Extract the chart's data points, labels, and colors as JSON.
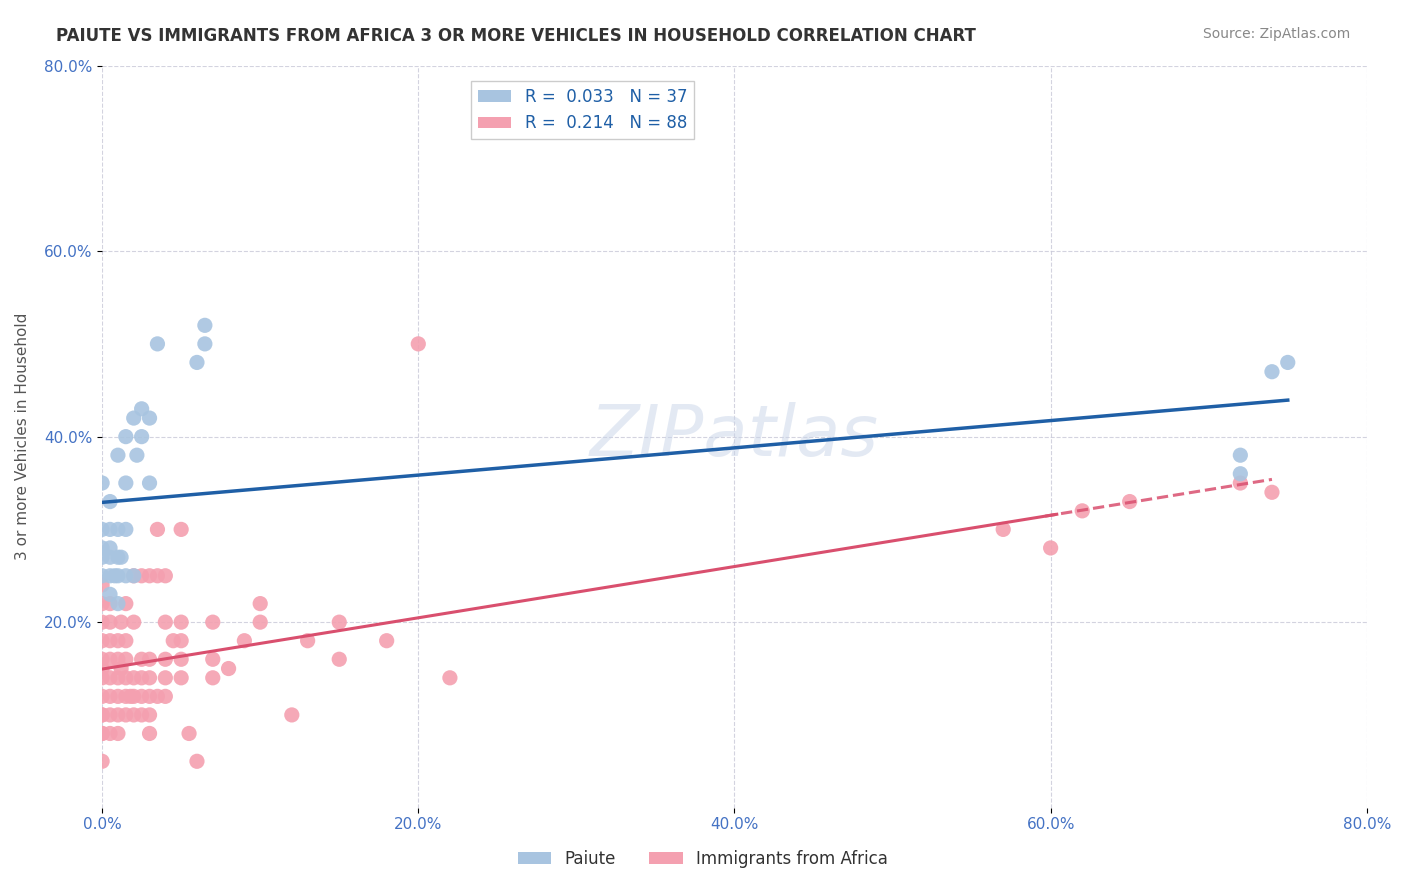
{
  "title": "PAIUTE VS IMMIGRANTS FROM AFRICA 3 OR MORE VEHICLES IN HOUSEHOLD CORRELATION CHART",
  "source": "Source: ZipAtlas.com",
  "xlabel": "",
  "ylabel": "3 or more Vehicles in Household",
  "xlim": [
    0.0,
    0.8
  ],
  "ylim": [
    0.0,
    0.8
  ],
  "xticks": [
    0.0,
    0.2,
    0.4,
    0.6,
    0.8
  ],
  "yticks": [
    0.2,
    0.4,
    0.6,
    0.8
  ],
  "xtick_labels": [
    "0.0%",
    "20.0%",
    "40.0%",
    "60.0%",
    "80.0%"
  ],
  "ytick_labels": [
    "20.0%",
    "40.0%",
    "60.0%",
    "80.0%"
  ],
  "paiute_R": 0.033,
  "paiute_N": 37,
  "africa_R": 0.214,
  "africa_N": 88,
  "paiute_color": "#a8c4e0",
  "africa_color": "#f4a0b0",
  "paiute_line_color": "#1f5fa6",
  "africa_line_color": "#d94f6e",
  "background_color": "#ffffff",
  "grid_color": "#c8c8d8",
  "watermark": "ZIPatlas",
  "legend_label_1": "Paiute",
  "legend_label_2": "Immigrants from Africa",
  "paiute_x": [
    0.0,
    0.0,
    0.0,
    0.0,
    0.0,
    0.005,
    0.005,
    0.005,
    0.005,
    0.005,
    0.005,
    0.008,
    0.01,
    0.01,
    0.01,
    0.01,
    0.01,
    0.012,
    0.015,
    0.015,
    0.015,
    0.015,
    0.02,
    0.02,
    0.022,
    0.025,
    0.025,
    0.03,
    0.03,
    0.035,
    0.06,
    0.065,
    0.065,
    0.72,
    0.72,
    0.74,
    0.75
  ],
  "paiute_y": [
    0.25,
    0.27,
    0.28,
    0.3,
    0.35,
    0.23,
    0.25,
    0.27,
    0.28,
    0.3,
    0.33,
    0.25,
    0.22,
    0.25,
    0.27,
    0.3,
    0.38,
    0.27,
    0.25,
    0.3,
    0.35,
    0.4,
    0.25,
    0.42,
    0.38,
    0.4,
    0.43,
    0.35,
    0.42,
    0.5,
    0.48,
    0.5,
    0.52,
    0.36,
    0.38,
    0.47,
    0.48
  ],
  "africa_x": [
    0.0,
    0.0,
    0.0,
    0.0,
    0.0,
    0.0,
    0.0,
    0.0,
    0.0,
    0.0,
    0.0,
    0.0,
    0.0,
    0.005,
    0.005,
    0.005,
    0.005,
    0.005,
    0.005,
    0.005,
    0.005,
    0.01,
    0.01,
    0.01,
    0.01,
    0.01,
    0.01,
    0.012,
    0.012,
    0.015,
    0.015,
    0.015,
    0.015,
    0.015,
    0.015,
    0.018,
    0.02,
    0.02,
    0.02,
    0.02,
    0.02,
    0.025,
    0.025,
    0.025,
    0.025,
    0.025,
    0.03,
    0.03,
    0.03,
    0.03,
    0.03,
    0.03,
    0.035,
    0.035,
    0.035,
    0.04,
    0.04,
    0.04,
    0.04,
    0.04,
    0.045,
    0.05,
    0.05,
    0.05,
    0.05,
    0.05,
    0.055,
    0.06,
    0.07,
    0.07,
    0.07,
    0.08,
    0.09,
    0.1,
    0.1,
    0.12,
    0.13,
    0.15,
    0.15,
    0.18,
    0.2,
    0.22,
    0.57,
    0.6,
    0.62,
    0.65,
    0.72,
    0.74
  ],
  "africa_y": [
    0.08,
    0.1,
    0.12,
    0.14,
    0.16,
    0.18,
    0.2,
    0.22,
    0.24,
    0.15,
    0.1,
    0.08,
    0.05,
    0.08,
    0.1,
    0.12,
    0.14,
    0.16,
    0.18,
    0.2,
    0.22,
    0.08,
    0.1,
    0.12,
    0.14,
    0.16,
    0.18,
    0.15,
    0.2,
    0.1,
    0.12,
    0.14,
    0.16,
    0.18,
    0.22,
    0.12,
    0.1,
    0.12,
    0.14,
    0.2,
    0.25,
    0.1,
    0.12,
    0.14,
    0.16,
    0.25,
    0.08,
    0.1,
    0.12,
    0.14,
    0.16,
    0.25,
    0.12,
    0.25,
    0.3,
    0.12,
    0.14,
    0.16,
    0.2,
    0.25,
    0.18,
    0.14,
    0.16,
    0.18,
    0.2,
    0.3,
    0.08,
    0.05,
    0.14,
    0.16,
    0.2,
    0.15,
    0.18,
    0.2,
    0.22,
    0.1,
    0.18,
    0.16,
    0.2,
    0.18,
    0.5,
    0.14,
    0.3,
    0.28,
    0.32,
    0.33,
    0.35,
    0.34
  ]
}
